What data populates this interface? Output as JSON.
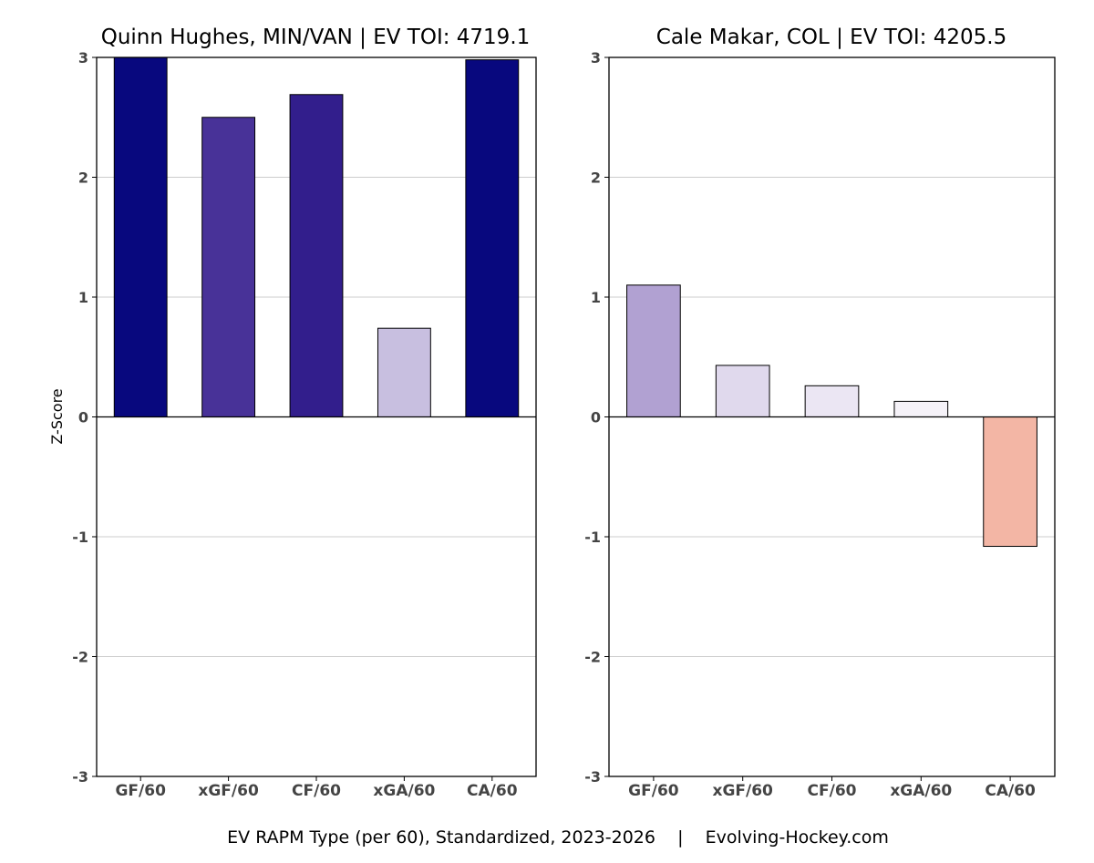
{
  "footer": "EV RAPM Type (per 60), Standardized, 2023-2026    |    Evolving-Hockey.com",
  "chart_data": [
    {
      "type": "bar",
      "title": "Quinn Hughes, MIN/VAN  |  EV TOI: 4719.1",
      "ylabel": "Z-Score",
      "xlabel": "",
      "ylim": [
        -3,
        3
      ],
      "yticks": [
        3,
        2,
        1,
        0,
        -1,
        -2,
        -3
      ],
      "grid": true,
      "categories": [
        "GF/60",
        "xGF/60",
        "CF/60",
        "xGA/60",
        "CA/60"
      ],
      "values": [
        3.0,
        2.5,
        2.69,
        0.74,
        2.98
      ],
      "colors": [
        "#08087e",
        "#483298",
        "#321e8c",
        "#c8bfe0",
        "#08087e"
      ]
    },
    {
      "type": "bar",
      "title": "Cale Makar, COL  |  EV TOI: 4205.5",
      "ylabel": "",
      "xlabel": "",
      "ylim": [
        -3,
        3
      ],
      "yticks": [
        3,
        2,
        1,
        0,
        -1,
        -2,
        -3
      ],
      "grid": true,
      "categories": [
        "GF/60",
        "xGF/60",
        "CF/60",
        "xGA/60",
        "CA/60"
      ],
      "values": [
        1.1,
        0.43,
        0.26,
        0.13,
        -1.08
      ],
      "colors": [
        "#b1a1d2",
        "#e0d9ed",
        "#ebe6f3",
        "#f5f2f8",
        "#f3b6a5"
      ]
    }
  ]
}
